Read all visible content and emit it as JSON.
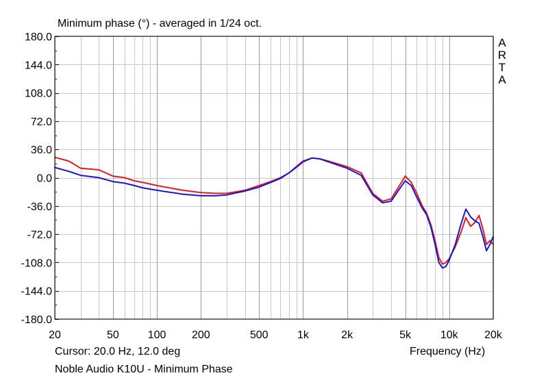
{
  "cursor_text": "Cursor: 20.0 Hz, 12.0 deg",
  "footer_text": "Noble Audio K10U - Minimum Phase",
  "watermark_letters": [
    "A",
    "R",
    "T",
    "A"
  ],
  "chart_data": {
    "type": "line",
    "title": "Minimum phase (°) - averaged in 1/24 oct.",
    "xlabel": "Frequency (Hz)",
    "ylabel": "",
    "xscale": "log",
    "xlim": [
      20,
      20000
    ],
    "ylim": [
      -180,
      180
    ],
    "grid": true,
    "y_ticks": [
      "180.0",
      "144.0",
      "108.0",
      "72.0",
      "36.0",
      "0.0",
      "-36.0",
      "-72.0",
      "-108.0",
      "-144.0",
      "-180.0"
    ],
    "y_tick_values": [
      180,
      144,
      108,
      72,
      36,
      0,
      -36,
      -72,
      -108,
      -144,
      -180
    ],
    "x_ticks": [
      "20",
      "50",
      "100",
      "200",
      "500",
      "1k",
      "2k",
      "5k",
      "10k",
      "20k"
    ],
    "x_tick_values": [
      20,
      50,
      100,
      200,
      500,
      1000,
      2000,
      5000,
      10000,
      20000
    ],
    "series": [
      {
        "color": "#e8191e",
        "x": [
          20,
          25,
          30,
          40,
          50,
          60,
          70,
          80,
          100,
          150,
          200,
          250,
          300,
          400,
          500,
          600,
          700,
          800,
          900,
          1000,
          1150,
          1300,
          1500,
          2000,
          2500,
          3000,
          3500,
          4000,
          4500,
          5000,
          5500,
          6000,
          6500,
          7000,
          7500,
          8000,
          8500,
          9000,
          9500,
          10000,
          11000,
          12000,
          13000,
          14000,
          15000,
          16000,
          17000,
          18000,
          19000,
          20000
        ],
        "y": [
          26,
          21,
          12,
          10,
          2,
          0,
          -4,
          -6,
          -10,
          -16,
          -19,
          -20,
          -20,
          -16,
          -10,
          -5,
          0,
          6,
          13,
          20,
          25,
          24,
          21,
          14,
          6,
          -20,
          -30,
          -27,
          -12,
          2,
          -6,
          -20,
          -35,
          -45,
          -60,
          -80,
          -102,
          -110,
          -108,
          -103,
          -88,
          -70,
          -51,
          -62,
          -57,
          -48,
          -65,
          -85,
          -80,
          -85
        ]
      },
      {
        "color": "#1616d2",
        "x": [
          20,
          25,
          30,
          40,
          50,
          60,
          70,
          80,
          100,
          150,
          200,
          250,
          300,
          400,
          500,
          600,
          700,
          800,
          900,
          1000,
          1150,
          1300,
          1500,
          2000,
          2500,
          3000,
          3500,
          4000,
          4500,
          5000,
          5500,
          6000,
          6500,
          7000,
          7500,
          8000,
          8500,
          9000,
          9500,
          10000,
          11000,
          12000,
          13000,
          14000,
          15000,
          16000,
          17000,
          18000,
          19000,
          20000
        ],
        "y": [
          13,
          8,
          3,
          0,
          -5,
          -7,
          -10,
          -13,
          -16,
          -21,
          -23,
          -23,
          -22,
          -17,
          -12,
          -6,
          -1,
          6,
          14,
          21,
          25,
          24,
          20,
          12,
          3,
          -22,
          -32,
          -30,
          -16,
          -4,
          -10,
          -25,
          -38,
          -47,
          -63,
          -85,
          -108,
          -115,
          -113,
          -105,
          -85,
          -60,
          -40,
          -50,
          -55,
          -58,
          -75,
          -93,
          -85,
          -75
        ]
      }
    ]
  }
}
